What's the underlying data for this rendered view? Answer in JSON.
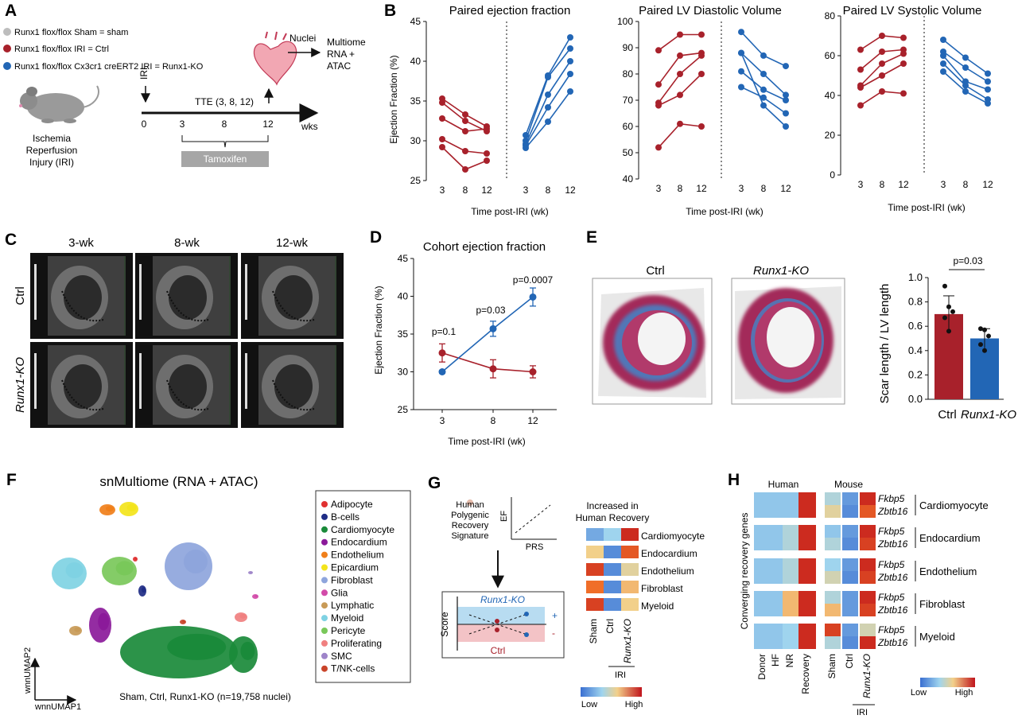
{
  "colors": {
    "sham": "#bdbdbd",
    "ctrl": "#a8212b",
    "ko": "#2266b5",
    "gray_bar": "#a6a6a6"
  },
  "panel_a": {
    "letter": "A",
    "legend": [
      {
        "label": "Runx1 flox/flox Sham = sham",
        "color": "#bdbdbd"
      },
      {
        "label": "Runx1 flox/flox IRI = Ctrl",
        "color": "#a8212b"
      },
      {
        "label": "Runx1 flox/flox Cx3cr1 creERT2 IRI = Runx1-KO",
        "color": "#2266b5"
      }
    ],
    "iri": "IRI",
    "tte": "TTE (3, 8, 12)",
    "ticks": [
      "0",
      "3",
      "8",
      "12"
    ],
    "unit": "wks",
    "tamoxifen": "Tamoxifen",
    "nuclei": "Nuclei",
    "multiome": [
      "Multiome",
      "RNA +",
      "ATAC"
    ],
    "mouse_caption": [
      "Ischemia",
      "Reperfusion",
      "Injury (IRI)"
    ]
  },
  "panel_b": {
    "letter": "B",
    "xlabel": "Time post-IRI (wk)",
    "ylabel": "Ejection Fraction (%)",
    "ticks_x": [
      "3",
      "8",
      "12",
      "3",
      "8",
      "12"
    ],
    "charts": [
      {
        "title": "Paired ejection fraction",
        "yticks": [
          "25",
          "30",
          "35",
          "40",
          "45"
        ]
      },
      {
        "title": "Paired LV Diastolic Volume",
        "yticks": [
          "40",
          "50",
          "60",
          "70",
          "80",
          "90",
          "100"
        ]
      },
      {
        "title": "Paired LV Systolic Volume",
        "yticks": [
          "0",
          "20",
          "40",
          "60",
          "80"
        ]
      }
    ]
  },
  "panel_c": {
    "letter": "C",
    "cols": [
      "3-wk",
      "8-wk",
      "12-wk"
    ],
    "rows": [
      "Ctrl",
      "Runx1-KO"
    ]
  },
  "panel_d": {
    "letter": "D",
    "pvals": [
      "p=0.1",
      "p=0.03",
      "p=0.0007"
    ]
  },
  "panel_e": {
    "letter": "E",
    "ctrl": "Ctrl",
    "ko": "Runx1-KO",
    "pval": "p=0.03",
    "ylabel": "Scar length / LV length"
  },
  "panel_f": {
    "letter": "F",
    "title": "snMultiome (RNA + ATAC)",
    "caption": "Sham, Ctrl, Runx1-KO (n=19,758 nuclei)",
    "axis_y": "wnnUMAP2",
    "axis_x": "wnnUMAP1",
    "legend": [
      {
        "label": "Adipocyte",
        "color": "#e03131"
      },
      {
        "label": "B-cells",
        "color": "#1f2d86"
      },
      {
        "label": "Cardiomyocyte",
        "color": "#1a8a3a"
      },
      {
        "label": "Endocardium",
        "color": "#8b1a9a"
      },
      {
        "label": "Endothelium",
        "color": "#f07f1a"
      },
      {
        "label": "Epicardium",
        "color": "#f3e41b"
      },
      {
        "label": "Fibroblast",
        "color": "#8ea5dc"
      },
      {
        "label": "Glia",
        "color": "#d24ba9"
      },
      {
        "label": "Lymphatic",
        "color": "#c89a57"
      },
      {
        "label": "Myeloid",
        "color": "#7fd2e3"
      },
      {
        "label": "Pericyte",
        "color": "#79c85a"
      },
      {
        "label": "Proliferating",
        "color": "#f08080"
      },
      {
        "label": "SMC",
        "color": "#9e84c9"
      },
      {
        "label": "T/NK-cells",
        "color": "#c9442a"
      }
    ]
  },
  "panel_g": {
    "letter": "G",
    "sig": [
      "Human",
      "Polygenic",
      "Recovery",
      "Signature"
    ],
    "ef": "EF",
    "prs": "PRS",
    "score": "Score",
    "ko": "Runx1-KO",
    "ctrl": "Ctrl",
    "plus": "+",
    "minus": "-",
    "heading": [
      "Increased in",
      "Human Recovery"
    ],
    "rows": [
      "Cardiomyocyte",
      "Endocardium",
      "Endothelium",
      "Fibroblast",
      "Myeloid"
    ],
    "cols": [
      "Sham",
      "Ctrl",
      "Runx1-KO"
    ],
    "iri": "IRI",
    "low": "Low",
    "high": "High"
  },
  "panel_h": {
    "letter": "H",
    "human": "Human",
    "mouse": "Mouse",
    "ylabel": "Converging recovery genes",
    "genes": [
      "Fkbp5",
      "Zbtb16"
    ],
    "groups": [
      "Cardiomyocyte",
      "Endocardium",
      "Endothelium",
      "Fibroblast",
      "Myeloid"
    ],
    "human_cols": [
      "Donor",
      "HF",
      "NR",
      "Recovery"
    ],
    "mouse_cols": [
      "Sham",
      "Ctrl",
      "Runx1-KO"
    ],
    "iri": "IRI",
    "low": "Low",
    "high": "High"
  },
  "chart_data": [
    {
      "type": "line",
      "id": "B1",
      "title": "Paired ejection fraction",
      "xlabel": "Time post-IRI (wk)",
      "ylabel": "Ejection Fraction (%)",
      "ylim": [
        25,
        45
      ],
      "series": [
        {
          "name": "Ctrl",
          "color": "#a8212b",
          "x": [
            3,
            8,
            12
          ],
          "lines": [
            [
              35.3,
              33.3,
              31.8
            ],
            [
              34.8,
              32.5,
              31.2
            ],
            [
              32.8,
              31.2,
              31.5
            ],
            [
              30.2,
              28.7,
              28.4
            ],
            [
              29.2,
              26.4,
              27.5
            ]
          ]
        },
        {
          "name": "Runx1-KO",
          "color": "#2266b5",
          "x": [
            3,
            8,
            12
          ],
          "lines": [
            [
              30.7,
              38.2,
              43.0
            ],
            [
              30.0,
              38.0,
              41.6
            ],
            [
              29.6,
              35.8,
              40.0
            ],
            [
              29.4,
              34.2,
              38.4
            ],
            [
              29.1,
              32.4,
              36.2
            ]
          ]
        }
      ]
    },
    {
      "type": "line",
      "id": "B2",
      "title": "Paired LV Diastolic Volume",
      "xlabel": "Time post-IRI (wk)",
      "ylim": [
        40,
        100
      ],
      "series": [
        {
          "name": "Ctrl",
          "color": "#a8212b",
          "x": [
            3,
            8,
            12
          ],
          "lines": [
            [
              89,
              95,
              95
            ],
            [
              76,
              87,
              88
            ],
            [
              69,
              80,
              87
            ],
            [
              68,
              72,
              80
            ],
            [
              52,
              61,
              60
            ]
          ]
        },
        {
          "name": "Runx1-KO",
          "color": "#2266b5",
          "x": [
            3,
            8,
            12
          ],
          "lines": [
            [
              96,
              87,
              83
            ],
            [
              88,
              80,
              72
            ],
            [
              81,
              74,
              70
            ],
            [
              75,
              71,
              65
            ],
            [
              88,
              68,
              60
            ]
          ]
        }
      ]
    },
    {
      "type": "line",
      "id": "B3",
      "title": "Paired LV Systolic Volume",
      "xlabel": "Time post-IRI (wk)",
      "ylim": [
        0,
        80
      ],
      "series": [
        {
          "name": "Ctrl",
          "color": "#a8212b",
          "x": [
            3,
            8,
            12
          ],
          "lines": [
            [
              63,
              70,
              69
            ],
            [
              53,
              62,
              63
            ],
            [
              45,
              56,
              61
            ],
            [
              44,
              50,
              56
            ],
            [
              35,
              42,
              41
            ]
          ]
        },
        {
          "name": "Runx1-KO",
          "color": "#2266b5",
          "x": [
            3,
            8,
            12
          ],
          "lines": [
            [
              68,
              59,
              51
            ],
            [
              62,
              54,
              47
            ],
            [
              60,
              47,
              43
            ],
            [
              56,
              45,
              38
            ],
            [
              52,
              42,
              36
            ]
          ]
        }
      ]
    },
    {
      "type": "line",
      "id": "D",
      "title": "Cohort ejection fraction",
      "xlabel": "Time post-IRI (wk)",
      "ylabel": "Ejection Fraction (%)",
      "ylim": [
        25,
        45
      ],
      "x": [
        3,
        8,
        12
      ],
      "series": [
        {
          "name": "Ctrl",
          "color": "#a8212b",
          "values": [
            32.5,
            30.4,
            30.0
          ],
          "err": [
            1.2,
            1.2,
            0.8
          ]
        },
        {
          "name": "Runx1-KO",
          "color": "#2266b5",
          "values": [
            30.0,
            35.7,
            39.9
          ],
          "err": [
            0.2,
            1.0,
            1.2
          ]
        }
      ],
      "annotations": [
        "p=0.1",
        "p=0.03",
        "p=0.0007"
      ]
    },
    {
      "type": "bar",
      "id": "E",
      "categories": [
        "Ctrl",
        "Runx1-KO"
      ],
      "values": [
        0.7,
        0.5
      ],
      "err": [
        0.15,
        0.08
      ],
      "ylabel": "Scar length / LV length",
      "ylim": [
        0,
        1.0
      ],
      "points": [
        [
          0.93,
          0.76,
          0.72,
          0.67,
          0.56
        ],
        [
          0.58,
          0.57,
          0.52,
          0.45,
          0.4
        ]
      ],
      "colors": [
        "#a8212b",
        "#2266b5"
      ],
      "annotation": "p=0.03"
    },
    {
      "type": "heatmap",
      "id": "G",
      "title": "Increased in Human Recovery",
      "rows": [
        "Cardiomyocyte",
        "Endocardium",
        "Endothelium",
        "Fibroblast",
        "Myeloid"
      ],
      "cols": [
        "Sham",
        "Ctrl",
        "Runx1-KO"
      ],
      "values": [
        [
          0.2,
          0.35,
          0.95
        ],
        [
          0.6,
          0.1,
          0.85
        ],
        [
          0.9,
          0.1,
          0.55
        ],
        [
          0.8,
          0.1,
          0.65
        ],
        [
          0.9,
          0.1,
          0.6
        ]
      ],
      "scale": [
        "Low",
        "High"
      ]
    },
    {
      "type": "heatmap",
      "id": "H",
      "rows": [
        "Cardiomyocyte Fkbp5",
        "Cardiomyocyte Zbtb16",
        "Endocardium Fkbp5",
        "Endocardium Zbtb16",
        "Endothelium Fkbp5",
        "Endothelium Zbtb16",
        "Fibroblast Fkbp5",
        "Fibroblast Zbtb16",
        "Myeloid Fkbp5",
        "Myeloid Zbtb16"
      ],
      "cols": [
        "Donor",
        "HF",
        "NR",
        "Recovery",
        "Sham",
        "Ctrl",
        "Runx1-KO"
      ],
      "values": [
        [
          0.3,
          0.3,
          0.3,
          0.95,
          0.4,
          0.15,
          0.95
        ],
        [
          0.3,
          0.3,
          0.3,
          0.95,
          0.55,
          0.1,
          0.85
        ],
        [
          0.3,
          0.3,
          0.4,
          0.95,
          0.3,
          0.15,
          0.95
        ],
        [
          0.3,
          0.3,
          0.4,
          0.95,
          0.4,
          0.1,
          0.9
        ],
        [
          0.3,
          0.3,
          0.4,
          0.95,
          0.35,
          0.15,
          0.95
        ],
        [
          0.3,
          0.3,
          0.4,
          0.95,
          0.5,
          0.1,
          0.9
        ],
        [
          0.3,
          0.3,
          0.65,
          0.95,
          0.4,
          0.15,
          0.95
        ],
        [
          0.3,
          0.3,
          0.65,
          0.95,
          0.65,
          0.15,
          0.9
        ],
        [
          0.3,
          0.3,
          0.35,
          0.95,
          0.9,
          0.15,
          0.5
        ],
        [
          0.3,
          0.3,
          0.35,
          0.95,
          0.4,
          0.1,
          0.95
        ]
      ],
      "scale": [
        "Low",
        "High"
      ]
    }
  ]
}
